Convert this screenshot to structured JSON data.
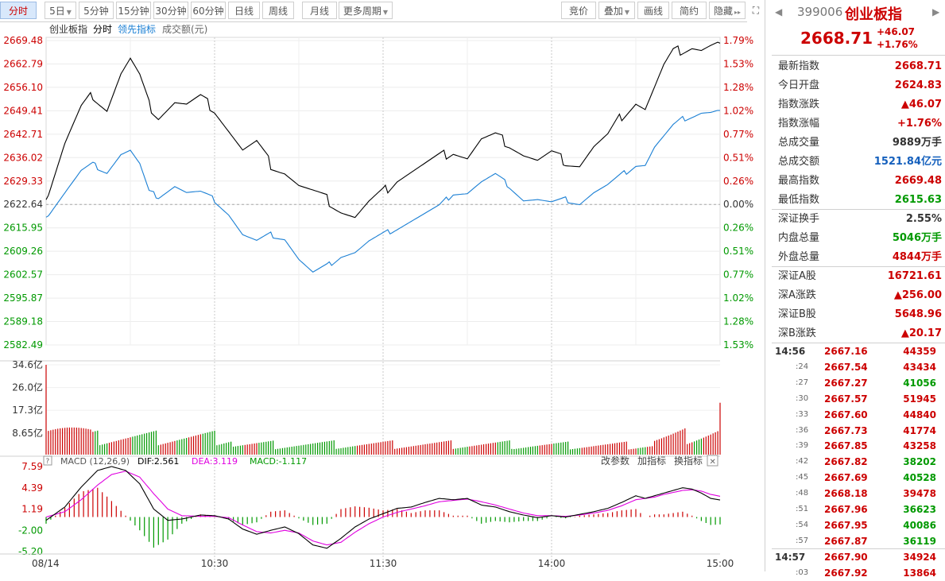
{
  "toolbar": {
    "left_buttons": [
      "分时",
      "5日",
      "5分钟",
      "15分钟",
      "30分钟",
      "60分钟",
      "日线",
      "周线",
      "月线",
      "更多周期"
    ],
    "right_buttons": [
      "竞价",
      "叠加",
      "画线",
      "简约",
      "隐藏"
    ]
  },
  "chart_header": {
    "name": "创业板指",
    "mode": "分时",
    "leading": "领先指标",
    "amount": "成交额(元)"
  },
  "macd_header": {
    "label": "MACD (12,26,9)",
    "dif": "DIF:2.561",
    "dea": "DEA:3.119",
    "macd": "MACD:-1.117",
    "actions": [
      "改参数",
      "加指标",
      "换指标"
    ]
  },
  "colors": {
    "up": "#cc0000",
    "down": "#009900",
    "price_line": "#000000",
    "leading_line": "#1a7fd4",
    "dif_line": "#000000",
    "dea_line": "#e000e0"
  },
  "chart_data": {
    "type": "line",
    "date": "08/14",
    "x_ticks": [
      "08/14",
      "10:30",
      "11:30",
      "14:00",
      "15:00"
    ],
    "price_ticks": [
      "2669.48",
      "2662.79",
      "2656.10",
      "2649.41",
      "2642.71",
      "2636.02",
      "2629.33",
      "2622.64",
      "2615.95",
      "2609.26",
      "2602.57",
      "2595.87",
      "2589.18",
      "2582.49"
    ],
    "pct_ticks": [
      "1.79%",
      "1.53%",
      "1.28%",
      "1.02%",
      "0.77%",
      "0.51%",
      "0.26%",
      "0.00%",
      "0.26%",
      "0.51%",
      "0.77%",
      "1.02%",
      "1.28%",
      "1.53%"
    ],
    "ylim": [
      2582.49,
      2669.48
    ],
    "prev_close": 2622.64,
    "volume_ticks": [
      "34.6亿",
      "26.0亿",
      "17.3亿",
      "8.65亿"
    ],
    "volume_max": 34.6,
    "macd_ticks": [
      "7.59",
      "4.39",
      "1.19",
      "-2.00",
      "-5.20"
    ],
    "macd_ylim": [
      -5.2,
      7.59
    ],
    "price_keys": [
      [
        0,
        2624
      ],
      [
        8,
        2640
      ],
      [
        15,
        2650
      ],
      [
        20,
        2654
      ],
      [
        26,
        2650
      ],
      [
        32,
        2660
      ],
      [
        36,
        2664
      ],
      [
        40,
        2659
      ],
      [
        44,
        2651
      ],
      [
        48,
        2648
      ],
      [
        55,
        2652
      ],
      [
        60,
        2651
      ],
      [
        66,
        2653
      ],
      [
        72,
        2650
      ],
      [
        78,
        2644
      ],
      [
        84,
        2638
      ],
      [
        90,
        2640
      ],
      [
        96,
        2634
      ],
      [
        102,
        2632
      ],
      [
        108,
        2628
      ],
      [
        114,
        2626
      ],
      [
        120,
        2624
      ],
      [
        126,
        2621
      ],
      [
        132,
        2619
      ],
      [
        138,
        2623
      ],
      [
        144,
        2626
      ],
      [
        150,
        2630
      ],
      [
        156,
        2632
      ],
      [
        162,
        2634
      ],
      [
        168,
        2636
      ],
      [
        174,
        2638
      ],
      [
        180,
        2636
      ],
      [
        186,
        2641
      ],
      [
        192,
        2642
      ],
      [
        198,
        2640
      ],
      [
        204,
        2637
      ],
      [
        210,
        2635
      ],
      [
        216,
        2637
      ],
      [
        222,
        2635
      ],
      [
        228,
        2634
      ],
      [
        234,
        2639
      ],
      [
        240,
        2642
      ],
      [
        246,
        2648
      ],
      [
        252,
        2652
      ],
      [
        256,
        2650
      ],
      [
        260,
        2656
      ],
      [
        264,
        2662
      ],
      [
        268,
        2666
      ],
      [
        272,
        2667
      ],
      [
        276,
        2668
      ],
      [
        280,
        2667
      ],
      [
        284,
        2668
      ],
      [
        288,
        2668.71
      ]
    ],
    "leading_keys": [
      [
        0,
        2619
      ],
      [
        8,
        2626
      ],
      [
        15,
        2632
      ],
      [
        20,
        2634
      ],
      [
        26,
        2632
      ],
      [
        32,
        2637
      ],
      [
        36,
        2638
      ],
      [
        40,
        2634
      ],
      [
        44,
        2626
      ],
      [
        48,
        2625
      ],
      [
        55,
        2628
      ],
      [
        60,
        2626
      ],
      [
        66,
        2626
      ],
      [
        72,
        2624
      ],
      [
        78,
        2620
      ],
      [
        84,
        2614
      ],
      [
        90,
        2612
      ],
      [
        96,
        2614
      ],
      [
        102,
        2613
      ],
      [
        108,
        2607
      ],
      [
        114,
        2603
      ],
      [
        120,
        2605
      ],
      [
        126,
        2608
      ],
      [
        132,
        2609
      ],
      [
        138,
        2612
      ],
      [
        144,
        2614
      ],
      [
        150,
        2616
      ],
      [
        156,
        2618
      ],
      [
        162,
        2620
      ],
      [
        168,
        2622
      ],
      [
        174,
        2626
      ],
      [
        180,
        2626
      ],
      [
        186,
        2629
      ],
      [
        192,
        2631
      ],
      [
        198,
        2628
      ],
      [
        204,
        2624
      ],
      [
        210,
        2624
      ],
      [
        216,
        2623
      ],
      [
        222,
        2624
      ],
      [
        228,
        2623
      ],
      [
        234,
        2626
      ],
      [
        240,
        2628
      ],
      [
        246,
        2631
      ],
      [
        252,
        2634
      ],
      [
        256,
        2634
      ],
      [
        260,
        2639
      ],
      [
        264,
        2642
      ],
      [
        268,
        2645
      ],
      [
        272,
        2647
      ],
      [
        276,
        2648
      ],
      [
        280,
        2649
      ],
      [
        284,
        2649
      ],
      [
        288,
        2649.5
      ]
    ],
    "dif_keys": [
      [
        0,
        -0.5
      ],
      [
        8,
        1.5
      ],
      [
        15,
        4.5
      ],
      [
        22,
        7
      ],
      [
        28,
        7.6
      ],
      [
        34,
        7
      ],
      [
        40,
        5
      ],
      [
        46,
        1.2
      ],
      [
        52,
        -0.5
      ],
      [
        58,
        -0.3
      ],
      [
        66,
        0.3
      ],
      [
        72,
        0.2
      ],
      [
        78,
        -0.3
      ],
      [
        84,
        -1.8
      ],
      [
        90,
        -2.6
      ],
      [
        96,
        -2
      ],
      [
        102,
        -1.5
      ],
      [
        108,
        -2.5
      ],
      [
        114,
        -4.2
      ],
      [
        120,
        -4.7
      ],
      [
        126,
        -3.2
      ],
      [
        132,
        -1.5
      ],
      [
        138,
        -0.3
      ],
      [
        144,
        0.5
      ],
      [
        150,
        1.3
      ],
      [
        156,
        1.5
      ],
      [
        162,
        2.2
      ],
      [
        168,
        2.8
      ],
      [
        174,
        2.6
      ],
      [
        180,
        2.8
      ],
      [
        186,
        1.8
      ],
      [
        192,
        1.5
      ],
      [
        198,
        0.8
      ],
      [
        204,
        0.3
      ],
      [
        210,
        -0.1
      ],
      [
        216,
        0.2
      ],
      [
        222,
        0
      ],
      [
        228,
        0.4
      ],
      [
        234,
        0.8
      ],
      [
        240,
        1.3
      ],
      [
        246,
        2.2
      ],
      [
        252,
        3.2
      ],
      [
        256,
        2.8
      ],
      [
        260,
        3.2
      ],
      [
        264,
        3.6
      ],
      [
        268,
        4
      ],
      [
        272,
        4.4
      ],
      [
        276,
        4.2
      ],
      [
        280,
        3.6
      ],
      [
        284,
        2.8
      ],
      [
        288,
        2.561
      ]
    ],
    "dea_keys": [
      [
        0,
        0
      ],
      [
        8,
        0.8
      ],
      [
        15,
        2.6
      ],
      [
        22,
        4.8
      ],
      [
        28,
        6.4
      ],
      [
        34,
        6.9
      ],
      [
        40,
        6
      ],
      [
        46,
        3.5
      ],
      [
        52,
        1.2
      ],
      [
        58,
        0.2
      ],
      [
        66,
        0.1
      ],
      [
        72,
        0.1
      ],
      [
        78,
        -0.1
      ],
      [
        84,
        -1.2
      ],
      [
        90,
        -2.2
      ],
      [
        96,
        -2.4
      ],
      [
        102,
        -2
      ],
      [
        108,
        -2.4
      ],
      [
        114,
        -3.6
      ],
      [
        120,
        -4.2
      ],
      [
        126,
        -3.8
      ],
      [
        132,
        -2.3
      ],
      [
        138,
        -1
      ],
      [
        144,
        0
      ],
      [
        150,
        0.7
      ],
      [
        156,
        1.2
      ],
      [
        162,
        1.7
      ],
      [
        168,
        2.3
      ],
      [
        174,
        2.5
      ],
      [
        180,
        2.7
      ],
      [
        186,
        2.3
      ],
      [
        192,
        1.8
      ],
      [
        198,
        1.2
      ],
      [
        204,
        0.6
      ],
      [
        210,
        0.2
      ],
      [
        216,
        0.2
      ],
      [
        222,
        0.1
      ],
      [
        228,
        0.3
      ],
      [
        234,
        0.6
      ],
      [
        240,
        1
      ],
      [
        246,
        1.7
      ],
      [
        252,
        2.6
      ],
      [
        256,
        2.8
      ],
      [
        260,
        3
      ],
      [
        264,
        3.4
      ],
      [
        268,
        3.7
      ],
      [
        272,
        4
      ],
      [
        276,
        4.1
      ],
      [
        280,
        3.9
      ],
      [
        284,
        3.4
      ],
      [
        288,
        3.119
      ]
    ]
  },
  "quote": {
    "code": "399006",
    "name": "创业板指",
    "price": "2668.71",
    "change": "+46.07",
    "change_pct": "+1.76%"
  },
  "stats": [
    {
      "k": "最新指数",
      "v": "2668.71",
      "c": "red"
    },
    {
      "k": "今日开盘",
      "v": "2624.83",
      "c": "red"
    },
    {
      "k": "指数涨跌",
      "v": "▲46.07",
      "c": "red"
    },
    {
      "k": "指数涨幅",
      "v": "+1.76%",
      "c": "red"
    },
    {
      "k": "总成交量",
      "v": "9889万手",
      "c": ""
    },
    {
      "k": "总成交额",
      "v": "1521.84亿元",
      "c": "blue"
    },
    {
      "k": "最高指数",
      "v": "2669.48",
      "c": "red"
    },
    {
      "k": "最低指数",
      "v": "2615.63",
      "c": "green"
    },
    {
      "k": "深证换手",
      "v": "2.55%",
      "c": ""
    },
    {
      "k": "内盘总量",
      "v": "5046万手",
      "c": "green"
    },
    {
      "k": "外盘总量",
      "v": "4844万手",
      "c": "red"
    },
    {
      "k": "深证A股",
      "v": "16721.61",
      "c": "red"
    },
    {
      "k": "深A涨跌",
      "v": "▲256.00",
      "c": "red"
    },
    {
      "k": "深证B股",
      "v": "5648.96",
      "c": "red"
    },
    {
      "k": "深B涨跌",
      "v": "▲20.17",
      "c": "red"
    }
  ],
  "ticks": [
    {
      "t": "14:56",
      "p": "2667.16",
      "v": "44359",
      "c": "red",
      "full": true
    },
    {
      "t": ":24",
      "p": "2667.54",
      "v": "43434",
      "c": "red",
      "full": false
    },
    {
      "t": ":27",
      "p": "2667.27",
      "v": "41056",
      "c": "green",
      "full": false
    },
    {
      "t": ":30",
      "p": "2667.57",
      "v": "51945",
      "c": "red",
      "full": false
    },
    {
      "t": ":33",
      "p": "2667.60",
      "v": "44840",
      "c": "red",
      "full": false
    },
    {
      "t": ":36",
      "p": "2667.73",
      "v": "41774",
      "c": "red",
      "full": false
    },
    {
      "t": ":39",
      "p": "2667.85",
      "v": "43258",
      "c": "red",
      "full": false
    },
    {
      "t": ":42",
      "p": "2667.82",
      "v": "38202",
      "c": "green",
      "full": false
    },
    {
      "t": ":45",
      "p": "2667.69",
      "v": "40528",
      "c": "green",
      "full": false
    },
    {
      "t": ":48",
      "p": "2668.18",
      "v": "39478",
      "c": "red",
      "full": false
    },
    {
      "t": ":51",
      "p": "2667.96",
      "v": "36623",
      "c": "green",
      "full": false
    },
    {
      "t": ":54",
      "p": "2667.95",
      "v": "40086",
      "c": "green",
      "full": false
    },
    {
      "t": ":57",
      "p": "2667.87",
      "v": "36119",
      "c": "green",
      "full": false
    },
    {
      "t": "14:57",
      "p": "2667.90",
      "v": "34924",
      "c": "red",
      "full": true
    },
    {
      "t": ":03",
      "p": "2667.92",
      "v": "13864",
      "c": "red",
      "full": false
    }
  ]
}
